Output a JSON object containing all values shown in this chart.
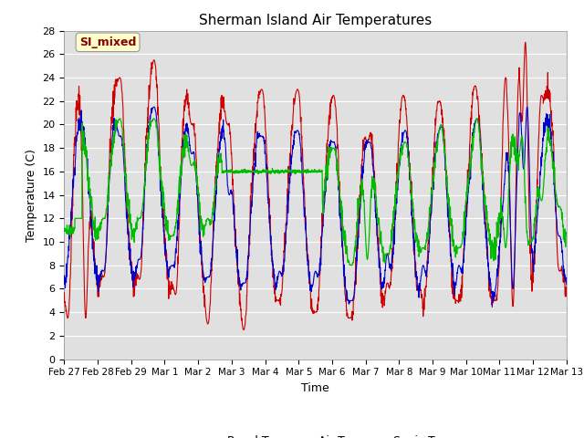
{
  "title": "Sherman Island Air Temperatures",
  "xlabel": "Time",
  "ylabel": "Temperature (C)",
  "ylim": [
    0,
    28
  ],
  "yticks": [
    0,
    2,
    4,
    6,
    8,
    10,
    12,
    14,
    16,
    18,
    20,
    22,
    24,
    26,
    28
  ],
  "xtick_labels": [
    "Feb 27",
    "Feb 28",
    "Feb 29",
    "Mar 1",
    "Mar 2",
    "Mar 3",
    "Mar 4",
    "Mar 5",
    "Mar 6",
    "Mar 7",
    "Mar 8",
    "Mar 9",
    "Mar 10",
    "Mar 11",
    "Mar 12",
    "Mar 13"
  ],
  "annotation_text": "SI_mixed",
  "panel_color": "#cc0000",
  "air_color": "#0000cc",
  "sonic_color": "#00bb00",
  "bg_color": "#e0e0e0",
  "title_fontsize": 11,
  "axis_label_fontsize": 9,
  "tick_fontsize": 8
}
